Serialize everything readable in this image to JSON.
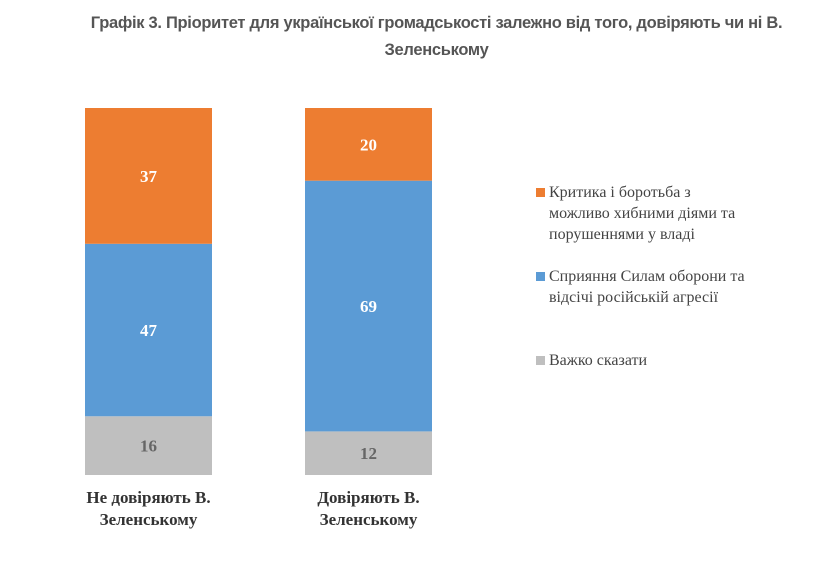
{
  "chart_data": {
    "type": "bar",
    "stacked": true,
    "title": "Графік 3. Пріоритет для української громадськості залежно від того, довіряють чи ні В. Зеленському",
    "categories": [
      "Не довіряють В. Зеленському",
      "Довіряють В. Зеленському"
    ],
    "series": [
      {
        "name": "Важко сказати",
        "color": "#BFBFBF",
        "label_color": "#666666",
        "values": [
          16,
          12
        ]
      },
      {
        "name": "Сприяння Силам оборони та відсічі російській агресії",
        "color": "#5B9BD5",
        "label_color": "#FFFFFF",
        "values": [
          47,
          69
        ]
      },
      {
        "name": "Критика і боротьба з можливо хибними діями та порушеннями у владі",
        "color": "#ED7D31",
        "label_color": "#FFFFFF",
        "values": [
          37,
          20
        ]
      }
    ],
    "legend_order": [
      2,
      1,
      0
    ],
    "legend": "right",
    "grid": false,
    "ylim": [
      0,
      100
    ]
  }
}
